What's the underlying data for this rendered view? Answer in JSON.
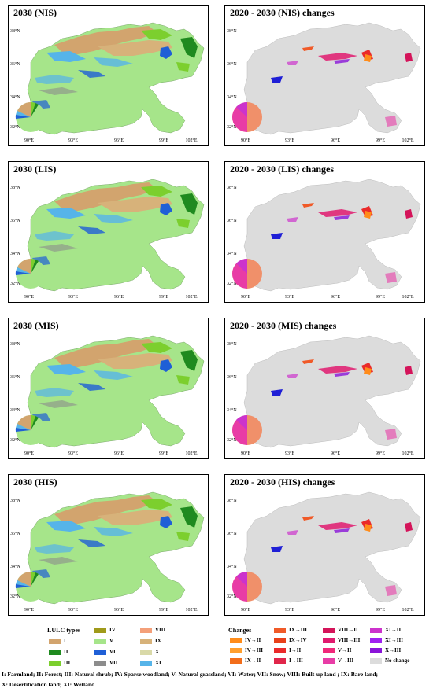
{
  "panels": [
    {
      "title": "2030 (NIS)",
      "kind": "lulc"
    },
    {
      "title": "2020 - 2030 (NIS) changes",
      "kind": "change"
    },
    {
      "title": "2030 (LIS)",
      "kind": "lulc"
    },
    {
      "title": "2020 - 2030 (LIS) changes",
      "kind": "change"
    },
    {
      "title": "2030 (MIS)",
      "kind": "lulc"
    },
    {
      "title": "2020 - 2030 (MIS) changes",
      "kind": "change"
    },
    {
      "title": "2030 (HIS)",
      "kind": "lulc"
    },
    {
      "title": "2020 - 2030 (HIS) changes",
      "kind": "change"
    }
  ],
  "lat_ticks": [
    "38°N",
    "36°N",
    "34°N",
    "32°N"
  ],
  "lon_ticks": [
    "90°E",
    "93°E",
    "96°E",
    "99°E",
    "102°E"
  ],
  "lulc_legend": {
    "title": "LULC types",
    "items": [
      {
        "label": "I",
        "color": "#d2a46e"
      },
      {
        "label": "II",
        "color": "#1f8a1f"
      },
      {
        "label": "III",
        "color": "#7ccf2e"
      },
      {
        "label": "IV",
        "color": "#a09a1a"
      },
      {
        "label": "V",
        "color": "#a6e58a"
      },
      {
        "label": "VI",
        "color": "#1f5fd6"
      },
      {
        "label": "VII",
        "color": "#8c8c8c"
      },
      {
        "label": "VIII",
        "color": "#f4a07a"
      },
      {
        "label": "IX",
        "color": "#d7b27a"
      },
      {
        "label": "X",
        "color": "#d9d9a8"
      },
      {
        "label": "XI",
        "color": "#56b4e9"
      }
    ]
  },
  "change_legend": {
    "title": "Changes",
    "items": [
      {
        "label": "IV→II",
        "color": "#ff8c1a"
      },
      {
        "label": "IV→III",
        "color": "#ff9f2e"
      },
      {
        "label": "IX→II",
        "color": "#f26d1a"
      },
      {
        "label": "IX→III",
        "color": "#f05a28"
      },
      {
        "label": "IX→IV",
        "color": "#e8401a"
      },
      {
        "label": "I→II",
        "color": "#ea2a2a"
      },
      {
        "label": "I→III",
        "color": "#e0264a"
      },
      {
        "label": "VIII→II",
        "color": "#d4145a"
      },
      {
        "label": "VIII→III",
        "color": "#e01a6e"
      },
      {
        "label": "V→II",
        "color": "#f0287a"
      },
      {
        "label": "V→III",
        "color": "#e83ca6"
      },
      {
        "label": "XI→II",
        "color": "#cc33cc"
      },
      {
        "label": "XI→III",
        "color": "#a020f0"
      },
      {
        "label": "X→III",
        "color": "#8a14d8"
      },
      {
        "label": "No change",
        "color": "#dcdcdc"
      }
    ]
  },
  "caption_line1": "I: Farmland; II: Forest; III: Natural shrub; IV: Sparse woodland; V: Natural grassland; VI: Water; VII: Snow; VIII: Built-up land ; IX: Bare land;",
  "caption_line2": "X: Desertification land; XI: Wetland"
}
